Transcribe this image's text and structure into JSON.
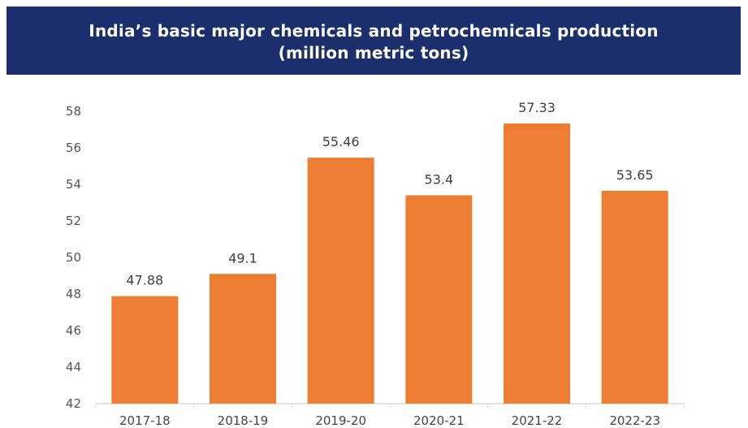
{
  "chart_data": {
    "type": "bar",
    "title": "India’s basic major chemicals and petrochemicals production",
    "subtitle": "(million metric tons)",
    "categories": [
      "2017-18",
      "2018-19",
      "2019-20",
      "2020-21",
      "2021-22",
      "2022-23"
    ],
    "values": [
      47.88,
      49.1,
      55.46,
      53.4,
      57.33,
      53.65
    ],
    "value_labels": [
      "47.88",
      "49.1",
      "55.46",
      "53.4",
      "57.33",
      "53.65"
    ],
    "xlabel": "",
    "ylabel": "",
    "ylim": [
      42,
      58
    ],
    "yticks": [
      42,
      44,
      46,
      48,
      50,
      52,
      54,
      56,
      58
    ],
    "grid": false,
    "legend": "none",
    "colors": {
      "bar": "#ed7d31",
      "banner": "#1b2f6e",
      "banner_text": "#ffffff",
      "axis": "#d9d9d9"
    }
  }
}
